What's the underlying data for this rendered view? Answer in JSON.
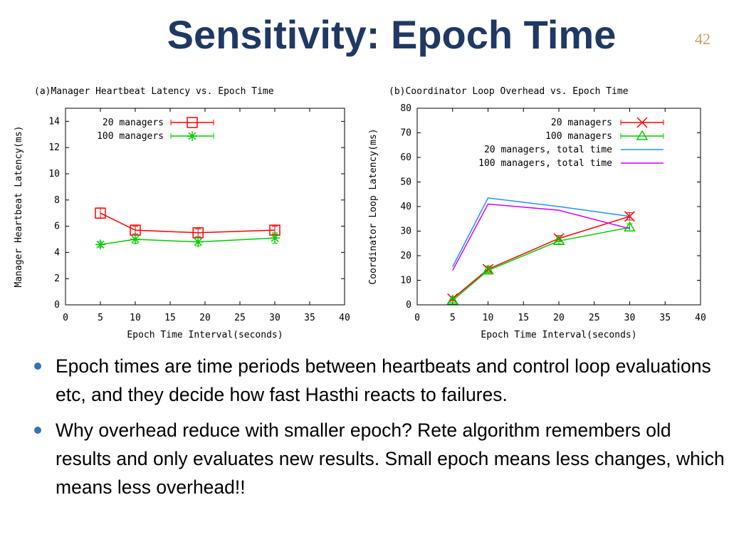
{
  "slide": {
    "title": "Sensitivity: Epoch Time",
    "page_number": "42"
  },
  "bullets": [
    "Epoch times are time periods between heartbeats and control loop evaluations etc, and they decide how fast Hasthi reacts to failures.",
    "Why overhead reduce with smaller epoch? Rete algorithm remembers old results and only evaluates new results. Small epoch means less changes, which means less overhead!!"
  ],
  "chart_data": [
    {
      "type": "line",
      "title": "(a)Manager Heartbeat Latency vs. Epoch Time",
      "xlabel": "Epoch Time Interval(seconds)",
      "ylabel": "Manager Heartbeat Latency(ms)",
      "xlim": [
        0,
        40
      ],
      "ylim": [
        0,
        15
      ],
      "xticks": [
        0,
        5,
        10,
        15,
        20,
        25,
        30,
        35,
        40
      ],
      "yticks": [
        0,
        2,
        4,
        6,
        8,
        10,
        12,
        14
      ],
      "grid": false,
      "legend": "top-left",
      "series": [
        {
          "name": "20 managers",
          "color": "#ff0000",
          "marker": "square",
          "x": [
            5,
            10,
            19,
            30
          ],
          "y": [
            7.0,
            5.7,
            5.5,
            5.7
          ],
          "err": [
            0.4,
            0.3,
            0.3,
            0.3
          ]
        },
        {
          "name": "100 managers",
          "color": "#00cc00",
          "marker": "star",
          "x": [
            5,
            10,
            19,
            30
          ],
          "y": [
            4.6,
            5.0,
            4.8,
            5.1
          ],
          "err": [
            0.2,
            0.3,
            0.3,
            0.4
          ]
        }
      ]
    },
    {
      "type": "line",
      "title": "(b)Coordinator Loop Overhead vs. Epoch Time",
      "xlabel": "Epoch Time Interval(seconds)",
      "ylabel": "Coordinator Loop Latency(ms)",
      "xlim": [
        0,
        40
      ],
      "ylim": [
        0,
        80
      ],
      "xticks": [
        0,
        5,
        10,
        15,
        20,
        25,
        30,
        35,
        40
      ],
      "yticks": [
        0,
        10,
        20,
        30,
        40,
        50,
        60,
        70,
        80
      ],
      "grid": false,
      "legend": "top-right",
      "series": [
        {
          "name": "20 managers",
          "color": "#ff0000",
          "marker": "x",
          "x": [
            5,
            10,
            20,
            30
          ],
          "y": [
            2.5,
            14.5,
            27,
            36
          ],
          "err": [
            0.8,
            1.2,
            1.2,
            1.5
          ]
        },
        {
          "name": "100 managers",
          "color": "#00cc00",
          "marker": "triangle",
          "x": [
            5,
            10,
            20,
            30
          ],
          "y": [
            1.8,
            14,
            26,
            31.5
          ],
          "err": [
            0.8,
            1.2,
            1.2,
            1.5
          ]
        },
        {
          "name": "20 managers, total time",
          "color": "#1e90ff",
          "marker": "none",
          "x": [
            5,
            10,
            20,
            30
          ],
          "y": [
            15.5,
            43.5,
            40,
            36
          ],
          "err": []
        },
        {
          "name": "100 managers, total time",
          "color": "#cc00ff",
          "marker": "none",
          "x": [
            5,
            10,
            20,
            30
          ],
          "y": [
            14,
            41,
            38.5,
            31
          ],
          "err": []
        }
      ]
    }
  ]
}
